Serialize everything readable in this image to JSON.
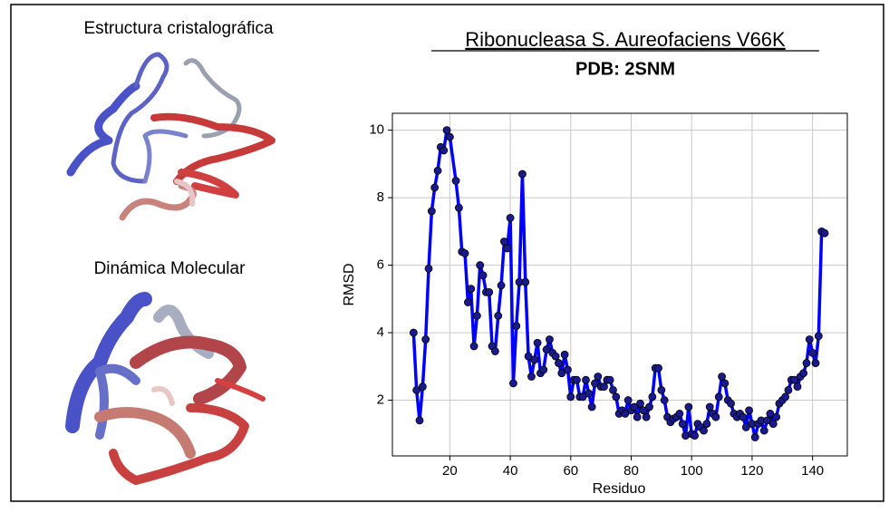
{
  "panels": {
    "crystal_label": "Estructura cristalográfica",
    "md_label": "Dinámica Molecular"
  },
  "chart_data": {
    "type": "line",
    "title": "Ribonucleasa S. Aureofaciens V66K",
    "subtitle": "PDB: 2SNM",
    "x_label": "Residuo",
    "y_label": "RMSD",
    "color": "#0000ff",
    "marker_color": "#1a1a8c",
    "grid": true,
    "xlim": [
      1,
      151.5
    ],
    "ylim": [
      0.35,
      10.5
    ],
    "xticks": [
      20,
      40,
      60,
      80,
      100,
      120,
      140
    ],
    "yticks": [
      2,
      4,
      6,
      8,
      10
    ],
    "x": [
      8,
      9,
      10,
      11,
      12,
      13,
      14,
      15,
      16,
      17,
      18,
      19,
      20,
      22,
      23,
      24,
      25,
      26,
      27,
      28,
      29,
      30,
      31,
      32,
      33,
      34,
      35,
      36,
      37,
      38,
      39,
      40,
      41,
      42,
      43,
      44,
      45,
      46,
      47,
      48,
      49,
      50,
      51,
      52,
      53,
      54,
      55,
      56,
      57,
      58,
      59,
      60,
      61,
      62,
      63,
      64,
      65,
      66,
      67,
      68,
      69,
      70,
      71,
      72,
      73,
      74,
      75,
      76,
      77,
      78,
      79,
      80,
      81,
      82,
      83,
      84,
      85,
      86,
      87,
      88,
      89,
      90,
      91,
      92,
      93,
      94,
      95,
      96,
      97,
      98,
      99,
      100,
      101,
      102,
      103,
      104,
      105,
      106,
      107,
      108,
      109,
      110,
      111,
      112,
      113,
      114,
      115,
      116,
      117,
      118,
      119,
      120,
      121,
      122,
      123,
      124,
      125,
      126,
      127,
      128,
      129,
      130,
      131,
      132,
      133,
      134,
      135,
      136,
      137,
      138,
      139,
      140,
      141,
      142,
      143,
      144
    ],
    "values": [
      4.0,
      2.3,
      1.4,
      2.4,
      3.8,
      5.9,
      7.6,
      8.3,
      8.8,
      9.5,
      9.4,
      10.0,
      9.8,
      8.5,
      7.7,
      6.4,
      6.35,
      4.9,
      5.3,
      3.6,
      4.5,
      6.0,
      5.7,
      5.2,
      5.2,
      3.6,
      3.45,
      4.5,
      5.4,
      6.7,
      6.5,
      7.4,
      2.5,
      4.2,
      5.5,
      8.7,
      5.5,
      3.3,
      2.7,
      3.2,
      3.7,
      2.8,
      2.9,
      3.5,
      3.8,
      3.4,
      3.3,
      3.1,
      2.8,
      3.35,
      2.9,
      2.1,
      2.6,
      2.6,
      2.1,
      2.1,
      2.6,
      2.2,
      1.8,
      2.5,
      2.7,
      2.4,
      2.4,
      2.6,
      2.6,
      2.3,
      2.1,
      1.6,
      1.7,
      1.6,
      2.0,
      1.7,
      1.8,
      1.5,
      1.9,
      1.7,
      1.5,
      1.8,
      2.1,
      2.95,
      2.95,
      2.3,
      2.0,
      1.5,
      1.35,
      1.45,
      1.5,
      1.6,
      1.3,
      0.95,
      1.8,
      1.0,
      0.95,
      1.3,
      1.2,
      1.1,
      1.3,
      1.8,
      1.6,
      1.5,
      2.1,
      2.7,
      2.5,
      2.0,
      1.9,
      1.6,
      1.5,
      1.6,
      1.5,
      1.2,
      1.7,
      1.3,
      0.9,
      1.3,
      1.4,
      1.1,
      1.4,
      1.6,
      1.3,
      1.5,
      1.9,
      2.0,
      2.1,
      2.3,
      2.6,
      2.6,
      2.4,
      2.7,
      2.8,
      3.1,
      3.8,
      3.4,
      3.1,
      3.9,
      7.0,
      6.95
    ]
  }
}
